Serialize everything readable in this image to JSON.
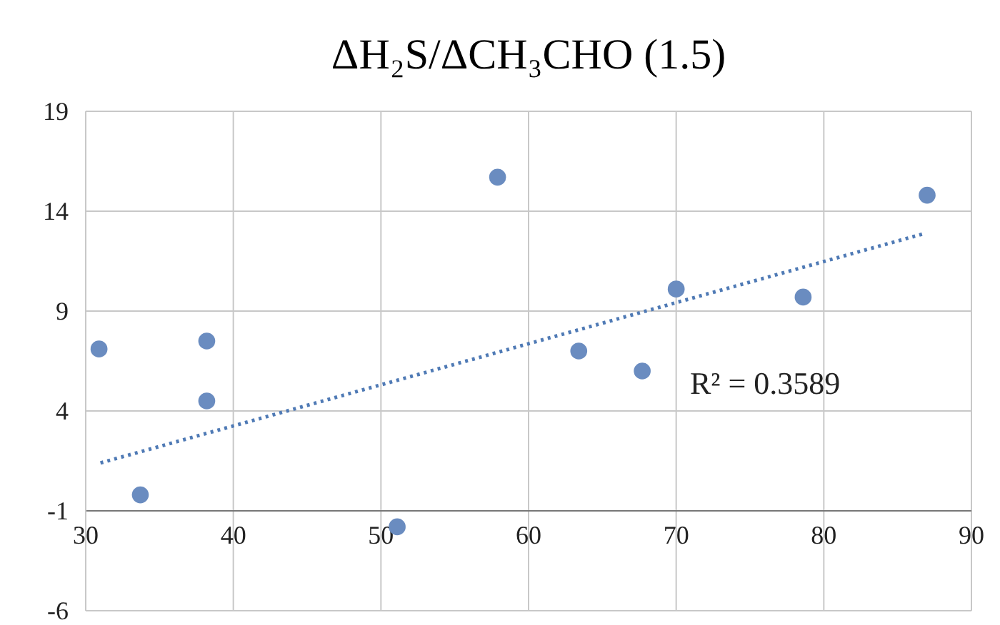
{
  "chart_data": {
    "type": "scatter",
    "title": "ΔH₂S/ΔCH₃CHO (1.5)",
    "xlim": [
      30,
      90
    ],
    "xticks": [
      30,
      40,
      50,
      60,
      70,
      80,
      90
    ],
    "ylim": [
      -6,
      19
    ],
    "yticks": [
      -6,
      -1,
      4,
      9,
      14,
      19
    ],
    "grid": true,
    "series": [
      {
        "marker": "circle",
        "color": "#6a8cc0",
        "x": [
          30.9,
          33.7,
          38.2,
          38.2,
          51.1,
          57.9,
          63.4,
          67.7,
          70.0,
          78.6,
          87.0
        ],
        "values": [
          7.1,
          -0.2,
          4.5,
          7.5,
          -1.8,
          15.7,
          7.0,
          6.0,
          10.1,
          9.7,
          14.8
        ]
      },
      {
        "type": "line",
        "color": "#4f7ab5",
        "line_style": "dotted",
        "x": [
          31.0,
          86.9
        ],
        "values": [
          1.4,
          12.9
        ]
      }
    ],
    "annotations": [
      "R² = 0.3589"
    ]
  }
}
